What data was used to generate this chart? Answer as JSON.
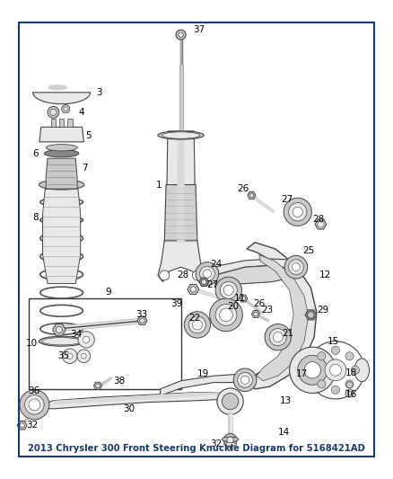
{
  "title": "2013 Chrysler 300 Front Steering Knuckle Diagram for 5168421AD",
  "bg_color": "#ffffff",
  "border_color": "#1a3a6b",
  "title_color": "#1a3a6b",
  "title_fontsize": 7.2,
  "fig_width": 4.38,
  "fig_height": 5.33,
  "dpi": 100,
  "lc": "#000000",
  "lfs": 7.5,
  "outline": "#444444",
  "fill_light": "#e8e8e8",
  "fill_mid": "#c8c8c8",
  "fill_dark": "#888888"
}
